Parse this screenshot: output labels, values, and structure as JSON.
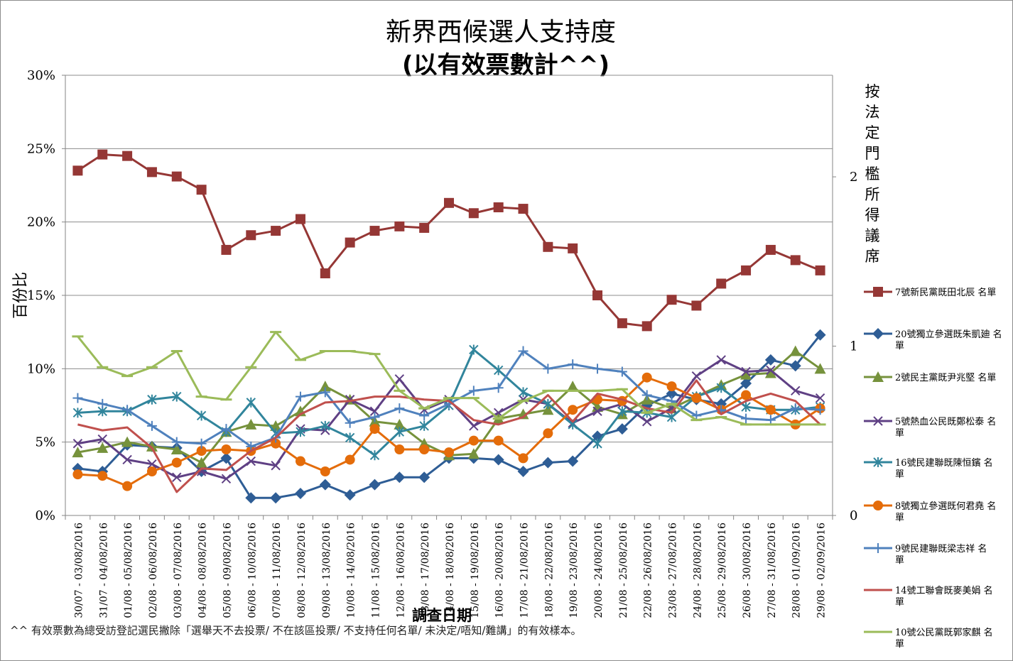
{
  "chart_data": {
    "type": "line",
    "title": "新界西候選人支持度",
    "subtitle": "(以有效票數計^^)",
    "ylabel": "百份比",
    "xlabel": "調查日期",
    "y2label": "按法定門檻所得議席",
    "ylim": [
      0,
      30
    ],
    "y_ticks": [
      "0%",
      "5%",
      "10%",
      "15%",
      "20%",
      "25%",
      "30%"
    ],
    "y2lim": [
      0,
      2.6
    ],
    "y2_ticks": [
      "0",
      "1",
      "2"
    ],
    "grid": true,
    "legend_position": "right",
    "categories": [
      "30/07 - 03/08/2016",
      "31/07 - 04/08/2016",
      "01/08 - 05/08/2016",
      "02/08 - 06/08/2016",
      "03/08 - 07/08/2016",
      "04/08 - 08/08/2016",
      "05/08 - 09/08/2016",
      "06/08 - 10/08/2016",
      "07/08 - 11/08/2016",
      "08/08 - 12/08/2016",
      "09/08 - 13/08/2016",
      "10/08 - 14/08/2016",
      "11/08 - 15/08/2016",
      "12/08 - 16/08/2016",
      "13/08 - 17/08/2016",
      "14/08 - 18/08/2016",
      "15/08 - 19/08/2016",
      "16/08 - 20/08/2016",
      "17/08 - 21/08/2016",
      "18/08 - 22/08/2016",
      "19/08 - 23/08/2016",
      "20/08 - 24/08/2016",
      "21/08 - 25/08/2016",
      "22/08 - 26/08/2016",
      "23/08 - 27/08/2016",
      "24/08 - 28/08/2016",
      "25/08 - 29/08/2016",
      "26/08 - 30/08/2016",
      "27/08 - 31/08/2016",
      "28/08 - 01/09/2016",
      "29/08 - 02/09/2016"
    ],
    "series": [
      {
        "name": "7號新民黨既田北辰 名單",
        "color": "#953735",
        "marker": "square",
        "values": [
          23.5,
          24.6,
          24.5,
          23.4,
          23.1,
          22.2,
          18.1,
          19.1,
          19.4,
          20.2,
          16.5,
          18.6,
          19.4,
          19.7,
          19.6,
          21.3,
          20.6,
          21.0,
          20.9,
          18.3,
          18.2,
          15.0,
          13.1,
          12.9,
          14.7,
          14.3,
          15.8,
          16.7,
          18.1,
          17.4,
          16.7
        ]
      },
      {
        "name": "20號獨立參選既朱凱廸 名單",
        "color": "#2E5D95",
        "marker": "diamond",
        "values": [
          3.2,
          3.0,
          4.8,
          4.7,
          4.6,
          3.0,
          3.9,
          1.2,
          1.2,
          1.5,
          2.1,
          1.4,
          2.1,
          2.6,
          2.6,
          3.9,
          3.9,
          3.8,
          3.0,
          3.6,
          3.7,
          5.4,
          5.9,
          7.5,
          8.3,
          7.9,
          7.6,
          9.0,
          10.6,
          10.2,
          12.3
        ]
      },
      {
        "name": "2號民主黨既尹兆堅 名單",
        "color": "#76923C",
        "marker": "triangle",
        "values": [
          4.3,
          4.6,
          5.0,
          4.7,
          4.5,
          3.6,
          5.7,
          6.2,
          6.1,
          7.1,
          8.8,
          7.9,
          6.4,
          6.2,
          4.9,
          4.1,
          4.2,
          6.6,
          6.9,
          7.2,
          8.8,
          7.4,
          6.9,
          7.9,
          7.3,
          8.1,
          8.9,
          9.6,
          9.7,
          11.2,
          10.0
        ]
      },
      {
        "name": "5號熱血公民既鄭松泰 名單",
        "color": "#5F4084",
        "marker": "x",
        "values": [
          4.9,
          5.2,
          3.8,
          3.5,
          2.6,
          3.0,
          2.5,
          3.7,
          3.4,
          5.9,
          5.8,
          7.9,
          7.1,
          9.3,
          7.2,
          7.9,
          6.1,
          7.0,
          7.9,
          7.6,
          6.3,
          7.1,
          7.6,
          6.4,
          7.3,
          9.5,
          10.6,
          9.8,
          9.9,
          8.5,
          8.0
        ]
      },
      {
        "name": "16號民建聯既陳恒鑌 名單",
        "color": "#31859C",
        "marker": "asterisk",
        "values": [
          7.0,
          7.1,
          7.1,
          7.9,
          8.1,
          6.8,
          5.7,
          7.7,
          5.6,
          5.7,
          6.1,
          5.3,
          4.1,
          5.7,
          6.1,
          7.5,
          11.3,
          9.9,
          8.4,
          7.6,
          6.2,
          4.9,
          7.1,
          7.0,
          6.7,
          8.1,
          8.7,
          7.4,
          7.2,
          7.2,
          7.4
        ]
      },
      {
        "name": "8號獨立參選既何君堯 名單",
        "color": "#E46C0A",
        "marker": "circle",
        "values": [
          2.8,
          2.7,
          2.0,
          3.0,
          3.6,
          4.4,
          4.5,
          4.4,
          4.9,
          3.7,
          3.0,
          3.8,
          5.9,
          4.5,
          4.5,
          4.3,
          5.1,
          5.1,
          3.9,
          5.6,
          7.2,
          7.9,
          7.8,
          9.4,
          8.8,
          8.0,
          7.2,
          8.2,
          7.2,
          6.2,
          7.3
        ]
      },
      {
        "name": "9號民建聯既梁志祥 名單",
        "color": "#4F81BD",
        "marker": "plus",
        "values": [
          8.0,
          7.6,
          7.2,
          6.1,
          5.0,
          4.9,
          5.9,
          4.7,
          5.3,
          8.1,
          8.4,
          6.3,
          6.7,
          7.3,
          6.8,
          7.6,
          8.5,
          8.7,
          11.2,
          10.0,
          10.3,
          10.0,
          9.8,
          8.2,
          7.8,
          6.8,
          7.2,
          6.6,
          6.5,
          7.3,
          7.2
        ]
      },
      {
        "name": "14號工聯會既麥美娟 名單",
        "color": "#C0504D",
        "marker": "none",
        "values": [
          6.2,
          5.8,
          6.0,
          4.6,
          1.6,
          3.2,
          3.1,
          4.4,
          5.3,
          6.9,
          7.7,
          7.8,
          8.1,
          8.1,
          7.9,
          7.8,
          6.5,
          6.2,
          6.7,
          8.2,
          6.4,
          8.3,
          7.9,
          7.3,
          7.0,
          9.2,
          6.9,
          7.8,
          8.3,
          7.8,
          6.2
        ]
      },
      {
        "name": "10號公民黨既郭家麒 名單",
        "color": "#9BBB59",
        "marker": "dash",
        "values": [
          12.2,
          10.1,
          9.5,
          10.1,
          11.2,
          8.1,
          7.9,
          10.1,
          12.5,
          10.6,
          11.2,
          11.2,
          11.0,
          8.5,
          7.3,
          8.0,
          8.0,
          6.6,
          7.8,
          8.5,
          8.5,
          8.5,
          8.6,
          7.0,
          7.6,
          6.5,
          6.7,
          6.2,
          6.2,
          6.2,
          6.2
        ]
      }
    ]
  },
  "footnote": "^^ 有效票數為總受訪登記選民撇除「選舉天不去投票/ 不在該區投票/ 不支持任何名單/ 未決定/唔知/難講」的有效樣本。"
}
